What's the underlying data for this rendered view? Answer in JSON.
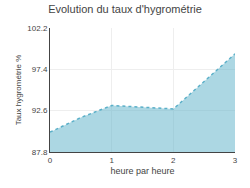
{
  "chart_data": {
    "type": "area",
    "title": "Evolution du taux d'hygrométrie",
    "xlabel": "heure par heure",
    "ylabel": "Taux hygrométrie %",
    "x": [
      0,
      0.5,
      1.0,
      1.5,
      2.0,
      3.0
    ],
    "values": [
      90.1,
      91.8,
      93.2,
      93.0,
      92.8,
      99.2
    ],
    "xlim": [
      0,
      3
    ],
    "ylim": [
      87.8,
      102.2
    ],
    "xticks": [
      0,
      1,
      2,
      3
    ],
    "yticks": [
      87.8,
      92.6,
      97.4,
      102.2
    ],
    "color": "#5aafc8",
    "line_style": "dotted",
    "grid": true
  }
}
